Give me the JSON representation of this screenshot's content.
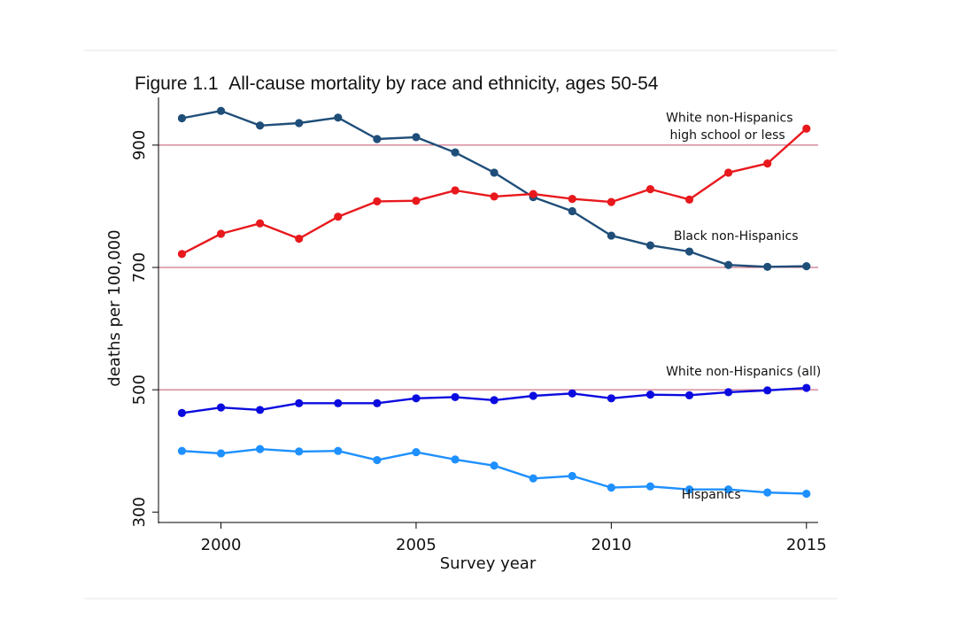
{
  "chart_data": {
    "type": "line",
    "title": "Figure 1.1",
    "subtitle": "All-cause mortality by race and ethnicity, ages 50-54",
    "xlabel": "Survey year",
    "ylabel": "deaths per 100,000",
    "xlim": [
      1998.4,
      2015.3
    ],
    "ylim": [
      283,
      978
    ],
    "x": [
      1999,
      2000,
      2001,
      2002,
      2003,
      2004,
      2005,
      2006,
      2007,
      2008,
      2009,
      2010,
      2011,
      2012,
      2013,
      2014,
      2015
    ],
    "xticks": [
      2000,
      2005,
      2010,
      2015
    ],
    "yticks": [
      300,
      500,
      700,
      900
    ],
    "reference_lines": [
      500,
      700,
      900
    ],
    "reference_line_color": "#c0506b",
    "series": [
      {
        "name": "Black non-Hispanics",
        "color": "#1f4e79",
        "values": [
          944,
          956,
          932,
          936,
          945,
          910,
          913,
          888,
          855,
          815,
          792,
          752,
          736,
          726,
          704,
          701,
          702
        ]
      },
      {
        "name": "White non-Hispanics high school or less",
        "color": "#e8191d",
        "values": [
          722,
          755,
          772,
          747,
          783,
          808,
          809,
          826,
          816,
          820,
          812,
          807,
          828,
          811,
          855,
          870,
          927
        ]
      },
      {
        "name": "White non-Hispanics (all)",
        "color": "#0b0be0",
        "values": [
          462,
          471,
          467,
          478,
          478,
          478,
          486,
          488,
          483,
          490,
          494,
          486,
          492,
          491,
          496,
          499,
          503
        ]
      },
      {
        "name": "Hispanics",
        "color": "#1e90ff",
        "values": [
          400,
          396,
          403,
          399,
          400,
          385,
          398,
          386,
          376,
          355,
          359,
          340,
          342,
          337,
          337,
          332,
          330
        ]
      }
    ],
    "annotations": [
      {
        "id": "white-hs-line1",
        "text": "White non-Hispanics",
        "x": 2011.4,
        "y": 938
      },
      {
        "id": "white-hs-line2",
        "text": "high school or less",
        "x": 2011.5,
        "y": 910
      },
      {
        "id": "black",
        "text": "Black non-Hispanics",
        "x": 2011.6,
        "y": 745
      },
      {
        "id": "white-all",
        "text": "White non-Hispanics (all)",
        "x": 2011.4,
        "y": 523
      },
      {
        "id": "hispanics",
        "text": "Hispanics",
        "x": 2011.8,
        "y": 322
      }
    ]
  }
}
